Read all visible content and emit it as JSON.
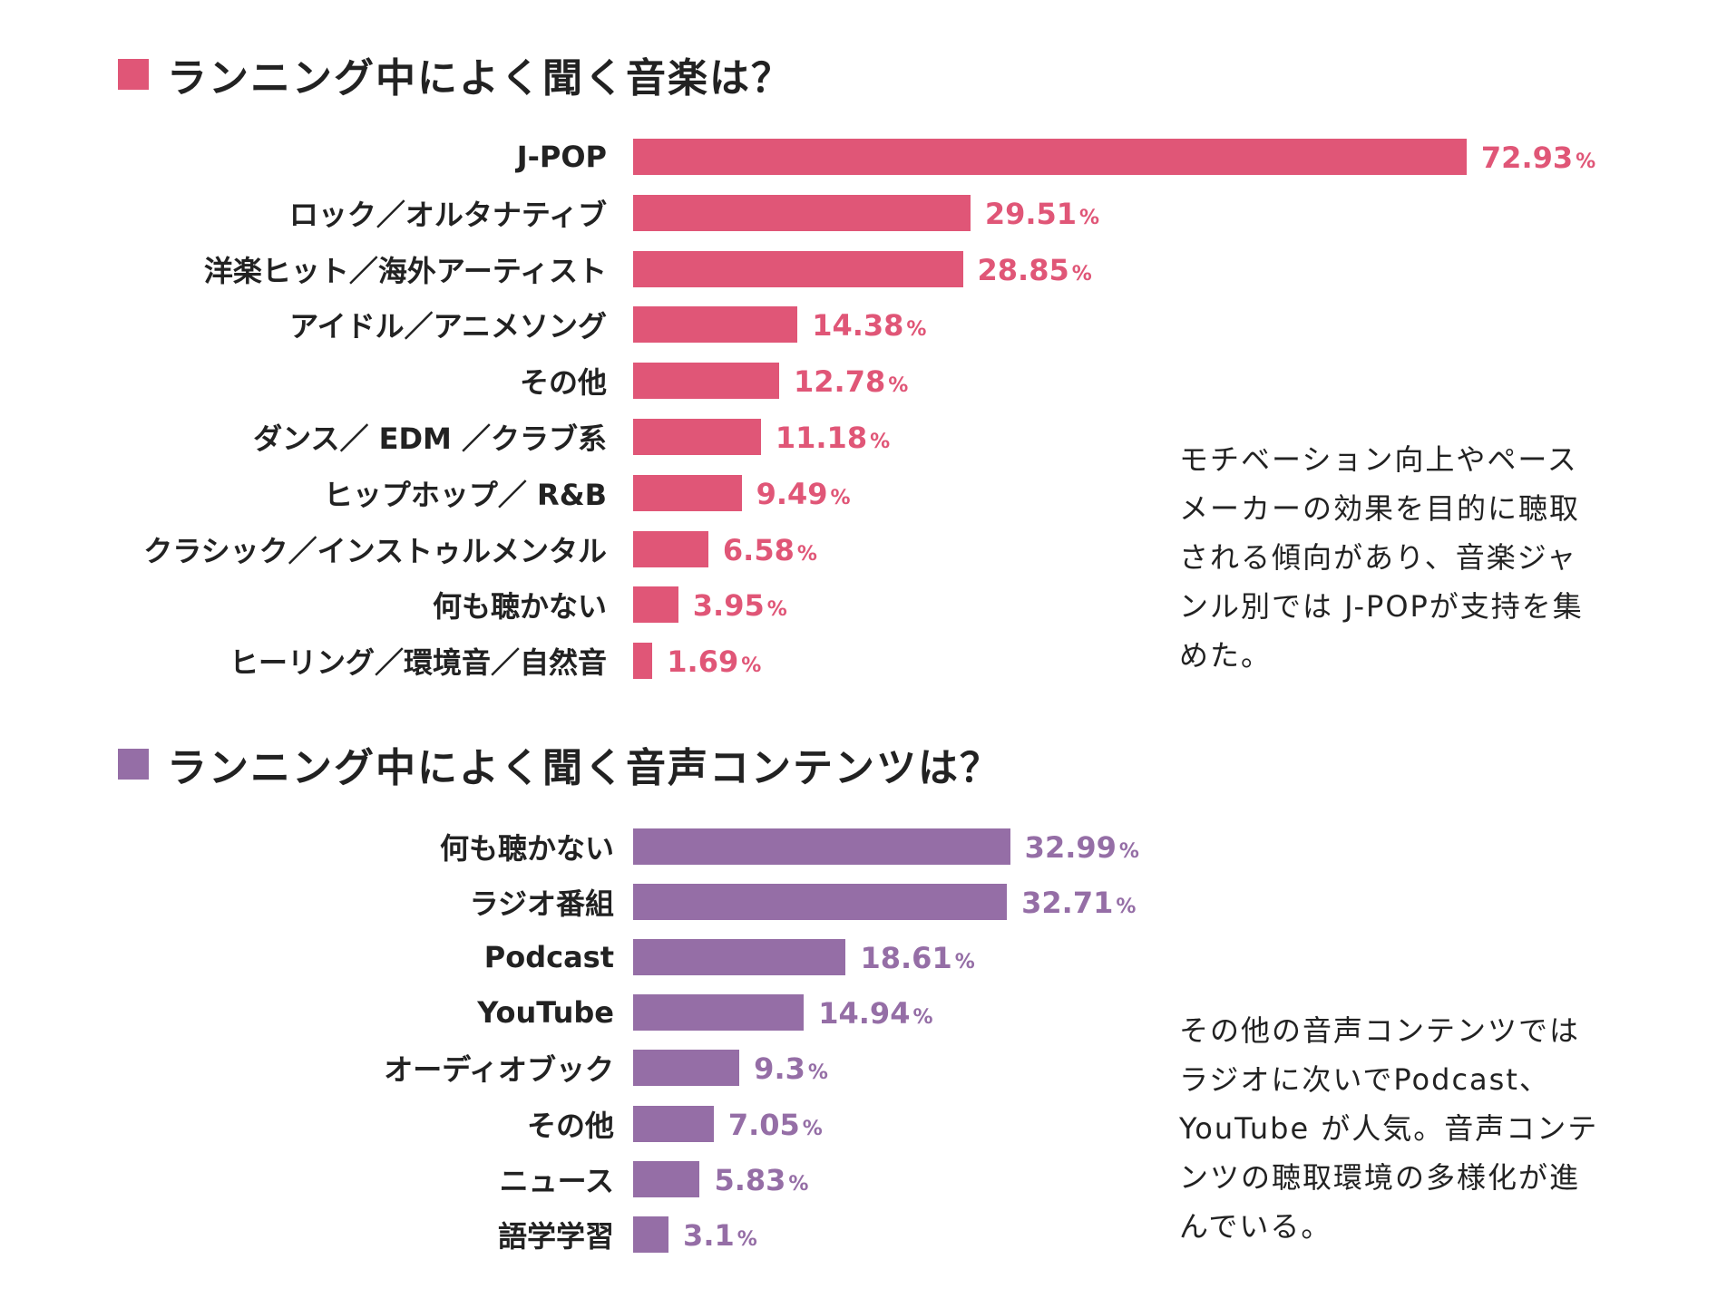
{
  "chart_data": [
    {
      "type": "bar",
      "orientation": "horizontal",
      "title": "ランニング中によく聞く音楽は？",
      "color": "#e05677",
      "unit": "%",
      "categories": [
        "J-POP",
        "ロック／オルタナティブ",
        "洋楽ヒット／海外アーティスト",
        "アイドル／アニメソング",
        "その他",
        "ダンス／ EDM ／クラブ系",
        "ヒップホップ／ R&B",
        "クラシック／インストゥルメンタル",
        "何も聴かない",
        "ヒーリング／環境音／自然音"
      ],
      "values": [
        72.93,
        29.51,
        28.85,
        14.38,
        12.78,
        11.18,
        9.49,
        6.58,
        3.95,
        1.69
      ],
      "value_labels": [
        "72.93",
        "29.51",
        "28.85",
        "14.38",
        "12.78",
        "11.18",
        "9.49",
        "6.58",
        "3.95",
        "1.69"
      ],
      "note": "モチベーション向上やペースメーカーの効果を目的に聴取される傾向があり、音楽ジャンル別では J-POPが支持を集めた。"
    },
    {
      "type": "bar",
      "orientation": "horizontal",
      "title": "ランニング中によく聞く音声コンテンツは？",
      "color": "#956ea6",
      "unit": "%",
      "categories": [
        "何も聴かない",
        "ラジオ番組",
        "Podcast",
        "YouTube",
        "オーディオブック",
        "その他",
        "ニュース",
        "語学学習"
      ],
      "values": [
        32.99,
        32.71,
        18.61,
        14.94,
        9.3,
        7.05,
        5.83,
        3.1
      ],
      "value_labels": [
        "32.99",
        "32.71",
        "18.61",
        "14.94",
        "9.3",
        "7.05",
        "5.83",
        "3.1"
      ],
      "note": "その他の音声コンテンツではラジオに次いでPodcast、YouTube が人気。音声コンテンツの聴取環境の多様化が進んでいる。"
    }
  ]
}
